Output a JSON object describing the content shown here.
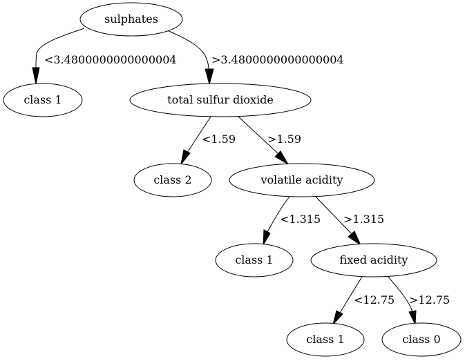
{
  "nodes": {
    "n_root": "sulphates",
    "n_c1a": "class 1",
    "n_tsd": "total sulfur dioxide",
    "n_c2": "class 2",
    "n_va": "volatile acidity",
    "n_c1b": "class 1",
    "n_fa": "fixed acidity",
    "n_c1c": "class 1",
    "n_c0": "class 0"
  },
  "edges": {
    "e1": "<3.4800000000000004",
    "e2": ">3.4800000000000004",
    "e3": "<1.59",
    "e4": ">1.59",
    "e5": "<1.315",
    "e6": ">1.315",
    "e7": "<12.75",
    "e8": ">12.75"
  }
}
